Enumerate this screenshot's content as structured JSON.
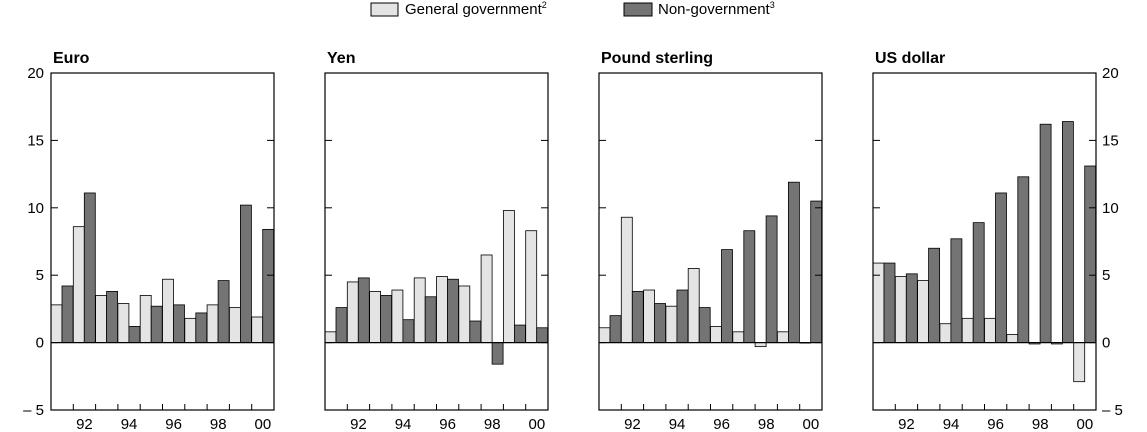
{
  "legend": {
    "gov_label": "General government",
    "gov_sup": "2",
    "nongov_label": "Non-government",
    "nongov_sup": "3"
  },
  "colors": {
    "gov": "#e4e4e4",
    "nongov": "#747474",
    "stroke": "#000000"
  },
  "chart_data": {
    "type": "bar",
    "years": [
      1991,
      1992,
      1993,
      1994,
      1995,
      1996,
      1997,
      1998,
      1999,
      2000
    ],
    "x_tick_labels": [
      "92",
      "94",
      "96",
      "98",
      "00"
    ],
    "x_tick_years": [
      1992,
      1994,
      1996,
      1998,
      2000
    ],
    "ylim": [
      -5,
      20
    ],
    "yticks": [
      -5,
      0,
      5,
      10,
      15,
      20
    ],
    "ytick_labels": [
      "– 5",
      "0",
      "5",
      "10",
      "15",
      "20"
    ],
    "grid": false,
    "legend_position": "top-center",
    "panels": [
      {
        "title": "Euro",
        "series": [
          {
            "name": "General government",
            "values": [
              2.8,
              8.6,
              3.5,
              2.9,
              3.5,
              4.7,
              1.8,
              2.8,
              2.6,
              1.9
            ]
          },
          {
            "name": "Non-government",
            "values": [
              4.2,
              11.1,
              3.8,
              1.2,
              2.7,
              2.8,
              2.2,
              4.6,
              10.2,
              8.4
            ]
          }
        ]
      },
      {
        "title": "Yen",
        "series": [
          {
            "name": "General government",
            "values": [
              0.8,
              4.5,
              3.8,
              3.9,
              4.8,
              4.9,
              4.2,
              6.5,
              9.8,
              8.3
            ]
          },
          {
            "name": "Non-government",
            "values": [
              2.6,
              4.8,
              3.5,
              1.7,
              3.4,
              4.7,
              1.6,
              -1.6,
              1.3,
              1.1
            ]
          }
        ]
      },
      {
        "title": "Pound sterling",
        "series": [
          {
            "name": "General government",
            "values": [
              1.1,
              9.3,
              3.9,
              2.7,
              5.5,
              1.2,
              0.8,
              -0.3,
              0.8,
              0.0
            ]
          },
          {
            "name": "Non-government",
            "values": [
              2.0,
              3.8,
              2.9,
              3.9,
              2.6,
              6.9,
              8.3,
              9.4,
              11.9,
              10.5
            ]
          }
        ]
      },
      {
        "title": "US dollar",
        "series": [
          {
            "name": "General government",
            "values": [
              5.9,
              4.9,
              4.6,
              1.4,
              1.8,
              1.8,
              0.6,
              -0.1,
              -0.1,
              -2.9
            ]
          },
          {
            "name": "Non-government",
            "values": [
              5.9,
              5.1,
              7.0,
              7.7,
              8.9,
              11.1,
              12.3,
              16.2,
              16.4,
              13.1
            ]
          }
        ]
      }
    ]
  }
}
